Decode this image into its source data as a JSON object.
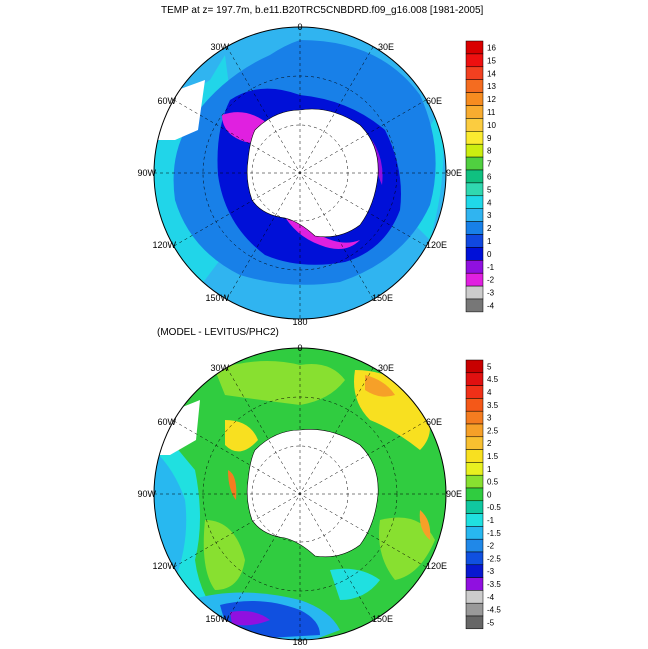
{
  "panels": [
    {
      "title": "TEMP at z= 197.7m, b.e11.B20TRC5CNBDRD.f09_g16.008 [1981-2005]",
      "map_labels": [
        "0",
        "30E",
        "60E",
        "90E",
        "120E",
        "150E",
        "180",
        "150W",
        "120W",
        "90W",
        "60W",
        "30W"
      ],
      "colorbar": {
        "levels": [
          "16",
          "15",
          "14",
          "13",
          "12",
          "11",
          "10",
          "9",
          "8",
          "7",
          "6",
          "5",
          "4",
          "3",
          "2",
          "1",
          "0",
          "-1",
          "-2",
          "-3",
          "-4"
        ],
        "colors": [
          "#d90000",
          "#ee1010",
          "#f24020",
          "#f46c20",
          "#f68c20",
          "#f8ac30",
          "#fbcc40",
          "#fbeb30",
          "#ccee10",
          "#50d040",
          "#10c080",
          "#30d8b0",
          "#20d8e8",
          "#30b4f0",
          "#1880e8",
          "#1048e0",
          "#0010d8",
          "#9010e0",
          "#e020e0",
          "#cccccc",
          "#777777"
        ]
      }
    },
    {
      "title": "(MODEL - LEVITUS/PHC2)",
      "map_labels": [
        "0",
        "30E",
        "60E",
        "90E",
        "120E",
        "150E",
        "180",
        "150W",
        "120W",
        "90W",
        "60W",
        "30W"
      ],
      "colorbar": {
        "levels": [
          "5",
          "4.5",
          "4",
          "3.5",
          "3",
          "2.5",
          "2",
          "1.5",
          "1",
          "0.5",
          "0",
          "-0.5",
          "-1",
          "-1.5",
          "-2",
          "-2.5",
          "-3",
          "-3.5",
          "-4",
          "-4.5",
          "-5"
        ],
        "colors": [
          "#c80000",
          "#e01010",
          "#f03018",
          "#f45818",
          "#f47c20",
          "#f6a028",
          "#f8c030",
          "#f8e020",
          "#e8f020",
          "#88e030",
          "#30cc40",
          "#10c8a0",
          "#20e0e0",
          "#28b8f0",
          "#2088e8",
          "#1050e0",
          "#0818d0",
          "#9010e0",
          "#cccccc",
          "#999999",
          "#666666"
        ]
      }
    }
  ]
}
